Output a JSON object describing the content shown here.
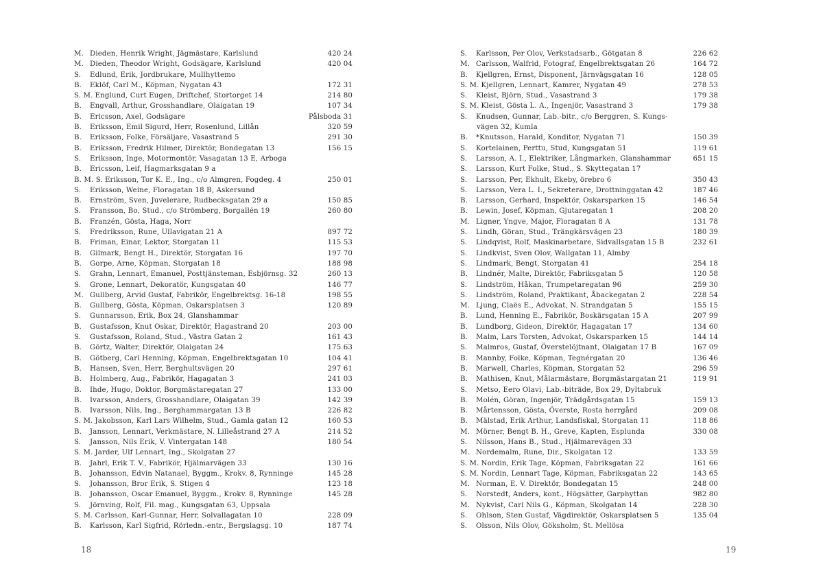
{
  "left_page": {
    "page_number": "18",
    "entries": [
      [
        "M.",
        "Dieden, Henrik Wright, Jägmästare, Karlslund",
        "420 24"
      ],
      [
        "M.",
        "Dieden, Theodor Wright, Godsägare, Karlslund",
        "420 04"
      ],
      [
        "S.",
        "Edlund, Erik, Jordbrukare, Mullhyttemo",
        ""
      ],
      [
        "B.",
        "Eklöf, Carl M., Köpman, Nygatan 43",
        "172 31"
      ],
      [
        "S. M.",
        "Englund, Curt Eugen, Driftchef, Stortorget 14",
        "214 80"
      ],
      [
        "B.",
        "Engvall, Arthur, Grosshandlare, Olaigatan 19",
        "107 34"
      ],
      [
        "B.",
        "Ericsson, Axel, Godsägare",
        "Pålsboda 31"
      ],
      [
        "B.",
        "Eriksson, Emil Sigurd, Herr, Rosenlund, Lillån",
        "320 59"
      ],
      [
        "B.",
        "Eriksson, Folke, Försäljare, Vasastrand 5",
        "291 30"
      ],
      [
        "B.",
        "Eriksson, Fredrik Hilmer, Direktör, Bondegatan 13",
        "156 15"
      ],
      [
        "S.",
        "Eriksson, Inge, Motormontör, Vasagatan 13 E, Arboga",
        ""
      ],
      [
        "B.",
        "Ericsson, Leif, Hagmarksgatan 9 a",
        ""
      ],
      [
        "B. M. S.",
        "Eriksson, Tor K. E., Ing., c/o Almgren, Fogdeg. 4",
        "250 01"
      ],
      [
        "S.",
        "Eriksson, Weine, Floragatan 18 B, Askersund",
        ""
      ],
      [
        "B.",
        "Ernström, Sven, Juvelerare, Rudbecksgatan 29 a",
        "150 85"
      ],
      [
        "S.",
        "Fransson, Bo, Stud., c/o Strömberg, Borgallén 19",
        "260 80"
      ],
      [
        "B.",
        "Franzén, Gösta, Haga, Norr",
        ""
      ],
      [
        "S.",
        "Fredriksson, Rune, Ullavigatan 21 A",
        "897 72"
      ],
      [
        "B.",
        "Friman, Einar, Lektor, Storgatan 11",
        "115 53"
      ],
      [
        "B.",
        "Gilmark, Bengt H., Direktör, Storgatan 16",
        "197 70"
      ],
      [
        "B.",
        "Gorpe, Arne, Köpman, Storgatan 18",
        "188 98"
      ],
      [
        "S.",
        "Grahn, Lennart, Emanuel, Posttjänsteman, Esbjörnsg. 32",
        "260 13"
      ],
      [
        "S.",
        "Grone, Lennart, Dekoratör, Kungsgatan 40",
        "146 77"
      ],
      [
        "M.",
        "Gullberg, Arvid Gustaf, Fabrikör, Engelbrektsg. 16-18",
        "198 55"
      ],
      [
        "B.",
        "Gullberg, Gösta, Köpman, Oskarsplatsen 3",
        "120 89"
      ],
      [
        "S.",
        "Gunnarsson, Erik, Box 24, Glanshammar",
        ""
      ],
      [
        "B.",
        "Gustafsson, Knut Oskar, Direktör, Hagastrand 20",
        "203 00"
      ],
      [
        "S.",
        "Gustafsson, Roland, Stud., Västra Gatan 2",
        "161 43"
      ],
      [
        "B.",
        "Görtz, Walter, Direktör, Olaigatan 24",
        "175 63"
      ],
      [
        "B.",
        "Götberg, Carl Henning, Köpman, Engelbrektsgatan 10",
        "104 41"
      ],
      [
        "B.",
        "Hansen, Sven, Herr, Berghultsvägen 20",
        "297 61"
      ],
      [
        "B.",
        "Holmberg, Aug., Fabrikör, Hagagatan 3",
        "241 03"
      ],
      [
        "B.",
        "Ihde, Hugo, Doktor, Borgmästaregatan 27",
        "133 00"
      ],
      [
        "B.",
        "Ivarsson, Anders, Grosshandlare, Olaigatan 39",
        "142 39"
      ],
      [
        "B.",
        "Ivarsson, Nils, Ing., Berghammargatan 13 B",
        "226 82"
      ],
      [
        "S. M.",
        "Jakobsson, Karl Lars Wilhelm, Stud., Gamla gatan 12",
        "160 53"
      ],
      [
        "B.",
        "Jansson, Lennart, Verkmästare, N. Lilleåstrand 27 A",
        "214 52"
      ],
      [
        "S.",
        "Jansson, Nils Erik, V. Vintergatan 148",
        "180 54"
      ],
      [
        "S. M.",
        "Jarder, Ulf Lennart, Ing., Skolgatan 27",
        ""
      ],
      [
        "B.",
        "Jahrl, Erik T. V., Fabrikör, Hjälmarvägen 33",
        "130 16"
      ],
      [
        "B.",
        "Johansson, Edvin Natanael, Byggm., Krokv. 8, Rynninge",
        "145 28"
      ],
      [
        "S.",
        "Johansson, Bror Erik, S. Stigen 4",
        "123 18"
      ],
      [
        "B.",
        "Johansson, Oscar Emanuel, Byggm., Krokv. 8, Rynninge",
        "145 28"
      ],
      [
        "S.",
        "Jörnving, Rolf, Fil. mag., Kungsgatan 63, Uppsala",
        ""
      ],
      [
        "S. M.",
        "Carlsson, Karl-Gunnar, Herr, Solvallagatan 10",
        "228 09"
      ],
      [
        "B.",
        "Karlsson, Karl Sigfrid, Rörledn.-entr., Bergslagsg. 10",
        "187 74"
      ]
    ]
  },
  "right_page": {
    "page_number": "19",
    "entries": [
      [
        "S.",
        "Karlsson, Per Olov, Verkstadsarb., Götgatan 8",
        "226 62"
      ],
      [
        "M.",
        "Carlsson, Walfrid, Fotograf, Engelbrektsgatan 26",
        "164 72"
      ],
      [
        "B.",
        "Kjellgren, Ernst, Disponent, Järnvägsgatan 16",
        "128 05"
      ],
      [
        "S. M.",
        "Kjellgren, Lennart, Kamrer, Nygatan 49",
        "278 53"
      ],
      [
        "S.",
        "Kleist, Björn, Stud., Vasastrand 3",
        "179 38"
      ],
      [
        "S. M.",
        "Kleist, Gösta L. A., Ingenjör, Vasastrand 3",
        "179 38"
      ],
      [
        "S.",
        "Knudsen, Gunnar, Lab.-bitr., c/o Berggren, S. Kungs-",
        ""
      ],
      [
        "",
        "vägen 32, Kumla",
        "",
        "cont"
      ],
      [
        "B.",
        "*Knutsson, Harald, Konditor, Nygatan 71",
        "150 39"
      ],
      [
        "S.",
        "Kortelainen, Perttu, Stud, Kungsgatan 51",
        "119 61"
      ],
      [
        "S.",
        "Larsson, A. I., Elektriker, Långmarken, Glanshammar",
        "651 15"
      ],
      [
        "S.",
        "Larsson, Kurt Folke, Stud., S. Skyttegatan 17",
        ""
      ],
      [
        "S.",
        "Larsson, Per, Ekhult, Ekeby, örebro 6",
        "350 43"
      ],
      [
        "S.",
        "Larsson, Vera L. I., Sekreterare, Drottninggatan 42",
        "187 46"
      ],
      [
        "B.",
        "Larsson, Gerhard, Inspektör, Oskarsparken 15",
        "146 54"
      ],
      [
        "B.",
        "Lewin, Josef, Köpman, Gjutaregatan 1",
        "208 20"
      ],
      [
        "M.",
        "Ligner, Yngve, Major, Floragatan 8 A",
        "131 78"
      ],
      [
        "S.",
        "Lindh, Göran, Stud., Trängkärsvägen 23",
        "180 39"
      ],
      [
        "S.",
        "Lindqvist, Rolf, Maskinarbetare, Sidvallsgatan 15 B",
        "232 61"
      ],
      [
        "S.",
        "Lindkvist, Sven Olov, Wallgatan 11, Almby",
        ""
      ],
      [
        "S.",
        "Lindmark, Bengt, Storgatan 41",
        "254 18"
      ],
      [
        "B.",
        "Lindnér, Malte, Direktör, Fabriksgatan 5",
        "120 58"
      ],
      [
        "S.",
        "Lindström, Håkan, Trumpetaregatan 96",
        "259 30"
      ],
      [
        "S.",
        "Lindström, Roland, Praktikant, Åbackegatan 2",
        "228 54"
      ],
      [
        "M.",
        "Ljung, Claës E., Advokat, N. Strandgatan 5",
        "155 15"
      ],
      [
        "B.",
        "Lund, Henning E., Fabrikör, Boskärsgatan 15 A",
        "207 99"
      ],
      [
        "B.",
        "Lundborg, Gideon, Direktör, Hagagatan 17",
        "134 60"
      ],
      [
        "B.",
        "Malm, Lars Torsten, Advokat, Oskarsparken 15",
        "144 14"
      ],
      [
        "S.",
        "Malmros, Gustaf, Överstelöjtnant, Olaigatan 17 B",
        "167 09"
      ],
      [
        "B.",
        "Mannby, Folke, Köpman, Tegnérgatan 20",
        "136 46"
      ],
      [
        "B.",
        "Marwell, Charles, Köpman, Storgatan 52",
        "296 59"
      ],
      [
        "B.",
        "Mathisen, Knut, Målarmästare, Borgmästargatan 21",
        "119 91"
      ],
      [
        "S.",
        "Metso, Eero Olavi, Lab.-biträde, Box 29, Dyltabruk",
        ""
      ],
      [
        "B.",
        "Molén, Göran, Ingenjör, Trädgårdsgatan 15",
        "159 13"
      ],
      [
        "B.",
        "Mårtensson, Gösta, Överste, Rosta herrgård",
        "209 08"
      ],
      [
        "B.",
        "Mälstad, Erik Arthur, Landsfiskal, Storgatan 11",
        "118 86"
      ],
      [
        "M.",
        "Mörner, Bengt B. H., Greve, Kapten, Esplunda",
        "330 08"
      ],
      [
        "S.",
        "Nilsson, Hans B., Stud., Hjälmarevägen 33",
        ""
      ],
      [
        "M.",
        "Nordemalm, Rune, Dir., Skolgatan 12",
        "133 59"
      ],
      [
        "S. M.",
        "Nordin, Erik Tage, Köpman, Fabriksgatan 22",
        "161 66"
      ],
      [
        "S. M.",
        "Nordin, Lennart Tage, Köpman, Fabriksgatan 22",
        "143 65"
      ],
      [
        "M.",
        "Norman, E. V. Direktör, Bondegatan 15",
        "248 00"
      ],
      [
        "S.",
        "Norstedt, Anders, kont., Högsätter, Garphyttan",
        "982 80"
      ],
      [
        "M.",
        "Nykvist, Carl Nils G., Köpman, Skolgatan 14",
        "228 30"
      ],
      [
        "S.",
        "Ohlson, Sten Gustaf, Vägdirektör, Oskarsplatsen 5",
        "135 04"
      ],
      [
        "S.",
        "Olsson, Nils Olov, Göksholm, St. Mellösa",
        ""
      ]
    ]
  }
}
